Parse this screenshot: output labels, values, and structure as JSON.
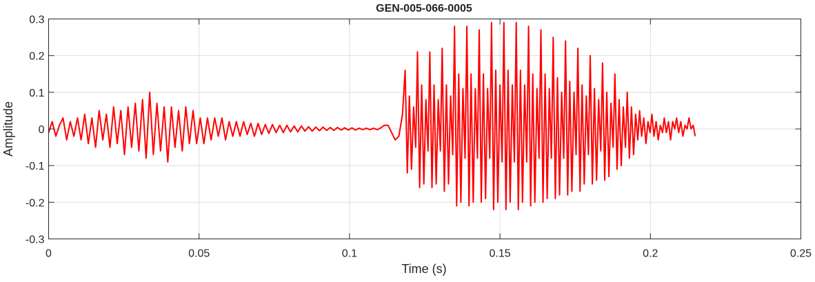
{
  "chart_data": {
    "type": "line",
    "title": "GEN-005-066-0005",
    "xlabel": "Time (s)",
    "ylabel": "Amplitude",
    "xlim": [
      0,
      0.25
    ],
    "ylim": [
      -0.3,
      0.3
    ],
    "xticks": [
      0,
      0.05,
      0.1,
      0.15,
      0.2,
      0.25
    ],
    "xtick_labels": [
      "0",
      "0.05",
      "0.1",
      "0.15",
      "0.2",
      "0.25"
    ],
    "yticks": [
      0.3,
      0.2,
      0.1,
      0,
      -0.1,
      -0.2,
      -0.3
    ],
    "ytick_labels": [
      "0.3",
      "0.2",
      "0.1",
      "0",
      "-0.1",
      "-0.2",
      "-0.3"
    ],
    "grid": true,
    "colors": {
      "line": "#ff0000",
      "grid": "#dedede",
      "axis": "#262626"
    },
    "series": [
      {
        "points": [
          [
            0,
            -0.01
          ],
          [
            0.0012,
            0.02
          ],
          [
            0.0024,
            -0.02
          ],
          [
            0.0036,
            0.01
          ],
          [
            0.0048,
            0.03
          ],
          [
            0.006,
            -0.03
          ],
          [
            0.0072,
            0.02
          ],
          [
            0.0084,
            -0.02
          ],
          [
            0.0096,
            0.03
          ],
          [
            0.0108,
            -0.03
          ],
          [
            0.012,
            0.04
          ],
          [
            0.0132,
            -0.04
          ],
          [
            0.0144,
            0.03
          ],
          [
            0.0156,
            -0.05
          ],
          [
            0.0168,
            0.05
          ],
          [
            0.018,
            -0.03
          ],
          [
            0.0192,
            0.04
          ],
          [
            0.0204,
            -0.05
          ],
          [
            0.0216,
            0.06
          ],
          [
            0.0228,
            -0.04
          ],
          [
            0.024,
            0.05
          ],
          [
            0.0252,
            -0.07
          ],
          [
            0.0264,
            0.06
          ],
          [
            0.0276,
            -0.05
          ],
          [
            0.0288,
            0.07
          ],
          [
            0.03,
            -0.06
          ],
          [
            0.0312,
            0.08
          ],
          [
            0.0324,
            -0.08
          ],
          [
            0.0336,
            0.1
          ],
          [
            0.0348,
            -0.07
          ],
          [
            0.036,
            0.07
          ],
          [
            0.0372,
            -0.06
          ],
          [
            0.0384,
            0.06
          ],
          [
            0.0396,
            -0.09
          ],
          [
            0.0408,
            0.06
          ],
          [
            0.042,
            -0.05
          ],
          [
            0.0432,
            0.05
          ],
          [
            0.0444,
            -0.06
          ],
          [
            0.0456,
            0.06
          ],
          [
            0.0468,
            -0.04
          ],
          [
            0.048,
            0.05
          ],
          [
            0.0492,
            -0.04
          ],
          [
            0.0504,
            0.03
          ],
          [
            0.0516,
            -0.04
          ],
          [
            0.0528,
            0.03
          ],
          [
            0.054,
            -0.03
          ],
          [
            0.0552,
            0.03
          ],
          [
            0.0564,
            -0.02
          ],
          [
            0.0576,
            0.03
          ],
          [
            0.0588,
            -0.03
          ],
          [
            0.06,
            0.02
          ],
          [
            0.0612,
            -0.02
          ],
          [
            0.0624,
            0.02
          ],
          [
            0.0636,
            -0.02
          ],
          [
            0.0648,
            0.02
          ],
          [
            0.066,
            -0.015
          ],
          [
            0.0672,
            0.015
          ],
          [
            0.0684,
            -0.02
          ],
          [
            0.0696,
            0.015
          ],
          [
            0.0708,
            -0.015
          ],
          [
            0.072,
            0.012
          ],
          [
            0.0732,
            -0.012
          ],
          [
            0.0744,
            0.012
          ],
          [
            0.0756,
            -0.01
          ],
          [
            0.0768,
            0.01
          ],
          [
            0.078,
            -0.01
          ],
          [
            0.0792,
            0.01
          ],
          [
            0.0804,
            -0.008
          ],
          [
            0.0816,
            0.008
          ],
          [
            0.0828,
            -0.008
          ],
          [
            0.084,
            0.008
          ],
          [
            0.0852,
            -0.006
          ],
          [
            0.0864,
            0.006
          ],
          [
            0.0876,
            -0.006
          ],
          [
            0.0888,
            0.005
          ],
          [
            0.09,
            -0.005
          ],
          [
            0.0912,
            0.005
          ],
          [
            0.0924,
            -0.004
          ],
          [
            0.0936,
            0.004
          ],
          [
            0.0948,
            -0.004
          ],
          [
            0.096,
            0.004
          ],
          [
            0.0972,
            -0.003
          ],
          [
            0.0984,
            0.003
          ],
          [
            0.0996,
            -0.003
          ],
          [
            0.1008,
            0.003
          ],
          [
            0.102,
            -0.003
          ],
          [
            0.1032,
            0.002
          ],
          [
            0.1044,
            -0.002
          ],
          [
            0.1056,
            0.002
          ],
          [
            0.1068,
            -0.002
          ],
          [
            0.108,
            0.002
          ],
          [
            0.1092,
            -0.002
          ],
          [
            0.1104,
            0.003
          ],
          [
            0.1116,
            0.01
          ],
          [
            0.1128,
            0.01
          ],
          [
            0.114,
            -0.01
          ],
          [
            0.1152,
            -0.03
          ],
          [
            0.1164,
            -0.02
          ],
          [
            0.1176,
            0.04
          ],
          [
            0.1185,
            0.16
          ],
          [
            0.1192,
            -0.12
          ],
          [
            0.1199,
            0.09
          ],
          [
            0.1206,
            -0.11
          ],
          [
            0.1213,
            0.06
          ],
          [
            0.122,
            -0.05
          ],
          [
            0.1226,
            0.21
          ],
          [
            0.1233,
            -0.16
          ],
          [
            0.124,
            0.12
          ],
          [
            0.1247,
            -0.15
          ],
          [
            0.1254,
            0.08
          ],
          [
            0.1261,
            -0.06
          ],
          [
            0.1267,
            0.21
          ],
          [
            0.1274,
            -0.16
          ],
          [
            0.1281,
            0.12
          ],
          [
            0.1288,
            -0.15
          ],
          [
            0.1295,
            0.08
          ],
          [
            0.1302,
            -0.06
          ],
          [
            0.1308,
            0.22
          ],
          [
            0.1315,
            -0.17
          ],
          [
            0.1322,
            0.12
          ],
          [
            0.1329,
            -0.15
          ],
          [
            0.1336,
            0.09
          ],
          [
            0.1343,
            -0.07
          ],
          [
            0.1349,
            0.28
          ],
          [
            0.1356,
            -0.21
          ],
          [
            0.1363,
            0.15
          ],
          [
            0.137,
            -0.2
          ],
          [
            0.1377,
            0.11
          ],
          [
            0.1384,
            -0.08
          ],
          [
            0.139,
            0.28
          ],
          [
            0.1397,
            -0.21
          ],
          [
            0.1404,
            0.15
          ],
          [
            0.1411,
            -0.2
          ],
          [
            0.1418,
            0.11
          ],
          [
            0.1425,
            -0.08
          ],
          [
            0.1431,
            0.27
          ],
          [
            0.1438,
            -0.2
          ],
          [
            0.1445,
            0.15
          ],
          [
            0.1452,
            -0.19
          ],
          [
            0.1459,
            0.11
          ],
          [
            0.1466,
            -0.08
          ],
          [
            0.1472,
            0.29
          ],
          [
            0.1479,
            -0.22
          ],
          [
            0.1486,
            0.16
          ],
          [
            0.1493,
            -0.2
          ],
          [
            0.15,
            0.12
          ],
          [
            0.1507,
            -0.09
          ],
          [
            0.1513,
            0.29
          ],
          [
            0.152,
            -0.22
          ],
          [
            0.1527,
            0.16
          ],
          [
            0.1534,
            -0.2
          ],
          [
            0.1541,
            0.12
          ],
          [
            0.1548,
            -0.09
          ],
          [
            0.1554,
            0.29
          ],
          [
            0.1561,
            -0.22
          ],
          [
            0.1568,
            0.16
          ],
          [
            0.1575,
            -0.2
          ],
          [
            0.1582,
            0.12
          ],
          [
            0.1589,
            -0.09
          ],
          [
            0.1595,
            0.28
          ],
          [
            0.1602,
            -0.21
          ],
          [
            0.1609,
            0.15
          ],
          [
            0.1616,
            -0.2
          ],
          [
            0.1623,
            0.11
          ],
          [
            0.163,
            -0.08
          ],
          [
            0.1636,
            0.27
          ],
          [
            0.1643,
            -0.2
          ],
          [
            0.165,
            0.15
          ],
          [
            0.1657,
            -0.19
          ],
          [
            0.1664,
            0.11
          ],
          [
            0.1671,
            -0.08
          ],
          [
            0.1677,
            0.25
          ],
          [
            0.1684,
            -0.19
          ],
          [
            0.1691,
            0.14
          ],
          [
            0.1698,
            -0.18
          ],
          [
            0.1705,
            0.1
          ],
          [
            0.1712,
            -0.08
          ],
          [
            0.1718,
            0.24
          ],
          [
            0.1725,
            -0.18
          ],
          [
            0.1732,
            0.13
          ],
          [
            0.1739,
            -0.17
          ],
          [
            0.1746,
            0.1
          ],
          [
            0.1753,
            -0.07
          ],
          [
            0.1759,
            0.22
          ],
          [
            0.1766,
            -0.17
          ],
          [
            0.1773,
            0.12
          ],
          [
            0.178,
            -0.15
          ],
          [
            0.1787,
            0.09
          ],
          [
            0.1794,
            -0.07
          ],
          [
            0.18,
            0.2
          ],
          [
            0.1807,
            -0.15
          ],
          [
            0.1814,
            0.11
          ],
          [
            0.1821,
            -0.14
          ],
          [
            0.1828,
            0.08
          ],
          [
            0.1835,
            -0.06
          ],
          [
            0.1841,
            0.18
          ],
          [
            0.1848,
            -0.14
          ],
          [
            0.1855,
            0.1
          ],
          [
            0.1862,
            -0.13
          ],
          [
            0.1869,
            0.07
          ],
          [
            0.1876,
            -0.05
          ],
          [
            0.1882,
            0.15
          ],
          [
            0.1889,
            -0.11
          ],
          [
            0.1896,
            0.08
          ],
          [
            0.1903,
            -0.1
          ],
          [
            0.191,
            0.06
          ],
          [
            0.1917,
            -0.05
          ],
          [
            0.1923,
            0.1
          ],
          [
            0.193,
            -0.08
          ],
          [
            0.1937,
            0.06
          ],
          [
            0.1944,
            -0.07
          ],
          [
            0.1951,
            0.04
          ],
          [
            0.1958,
            -0.03
          ],
          [
            0.1964,
            0.05
          ],
          [
            0.1971,
            -0.02
          ],
          [
            0.1978,
            0.03
          ],
          [
            0.1985,
            -0.04
          ],
          [
            0.1992,
            0.02
          ],
          [
            0.1999,
            -0.01
          ],
          [
            0.2005,
            0.04
          ],
          [
            0.2012,
            -0.02
          ],
          [
            0.2019,
            0.02
          ],
          [
            0.2026,
            -0.03
          ],
          [
            0.2033,
            0.01
          ],
          [
            0.204,
            -0.01
          ],
          [
            0.2046,
            0.03
          ],
          [
            0.2053,
            -0.01
          ],
          [
            0.206,
            0.02
          ],
          [
            0.2067,
            -0.03
          ],
          [
            0.2074,
            0.02
          ],
          [
            0.2081,
            0
          ],
          [
            0.2087,
            0.03
          ],
          [
            0.2094,
            -0.01
          ],
          [
            0.2101,
            0.02
          ],
          [
            0.2108,
            -0.02
          ],
          [
            0.2115,
            0.01
          ],
          [
            0.2122,
            0
          ],
          [
            0.2128,
            0.03
          ],
          [
            0.2135,
            0
          ],
          [
            0.2142,
            0.01
          ],
          [
            0.2149,
            -0.02
          ]
        ]
      }
    ]
  }
}
